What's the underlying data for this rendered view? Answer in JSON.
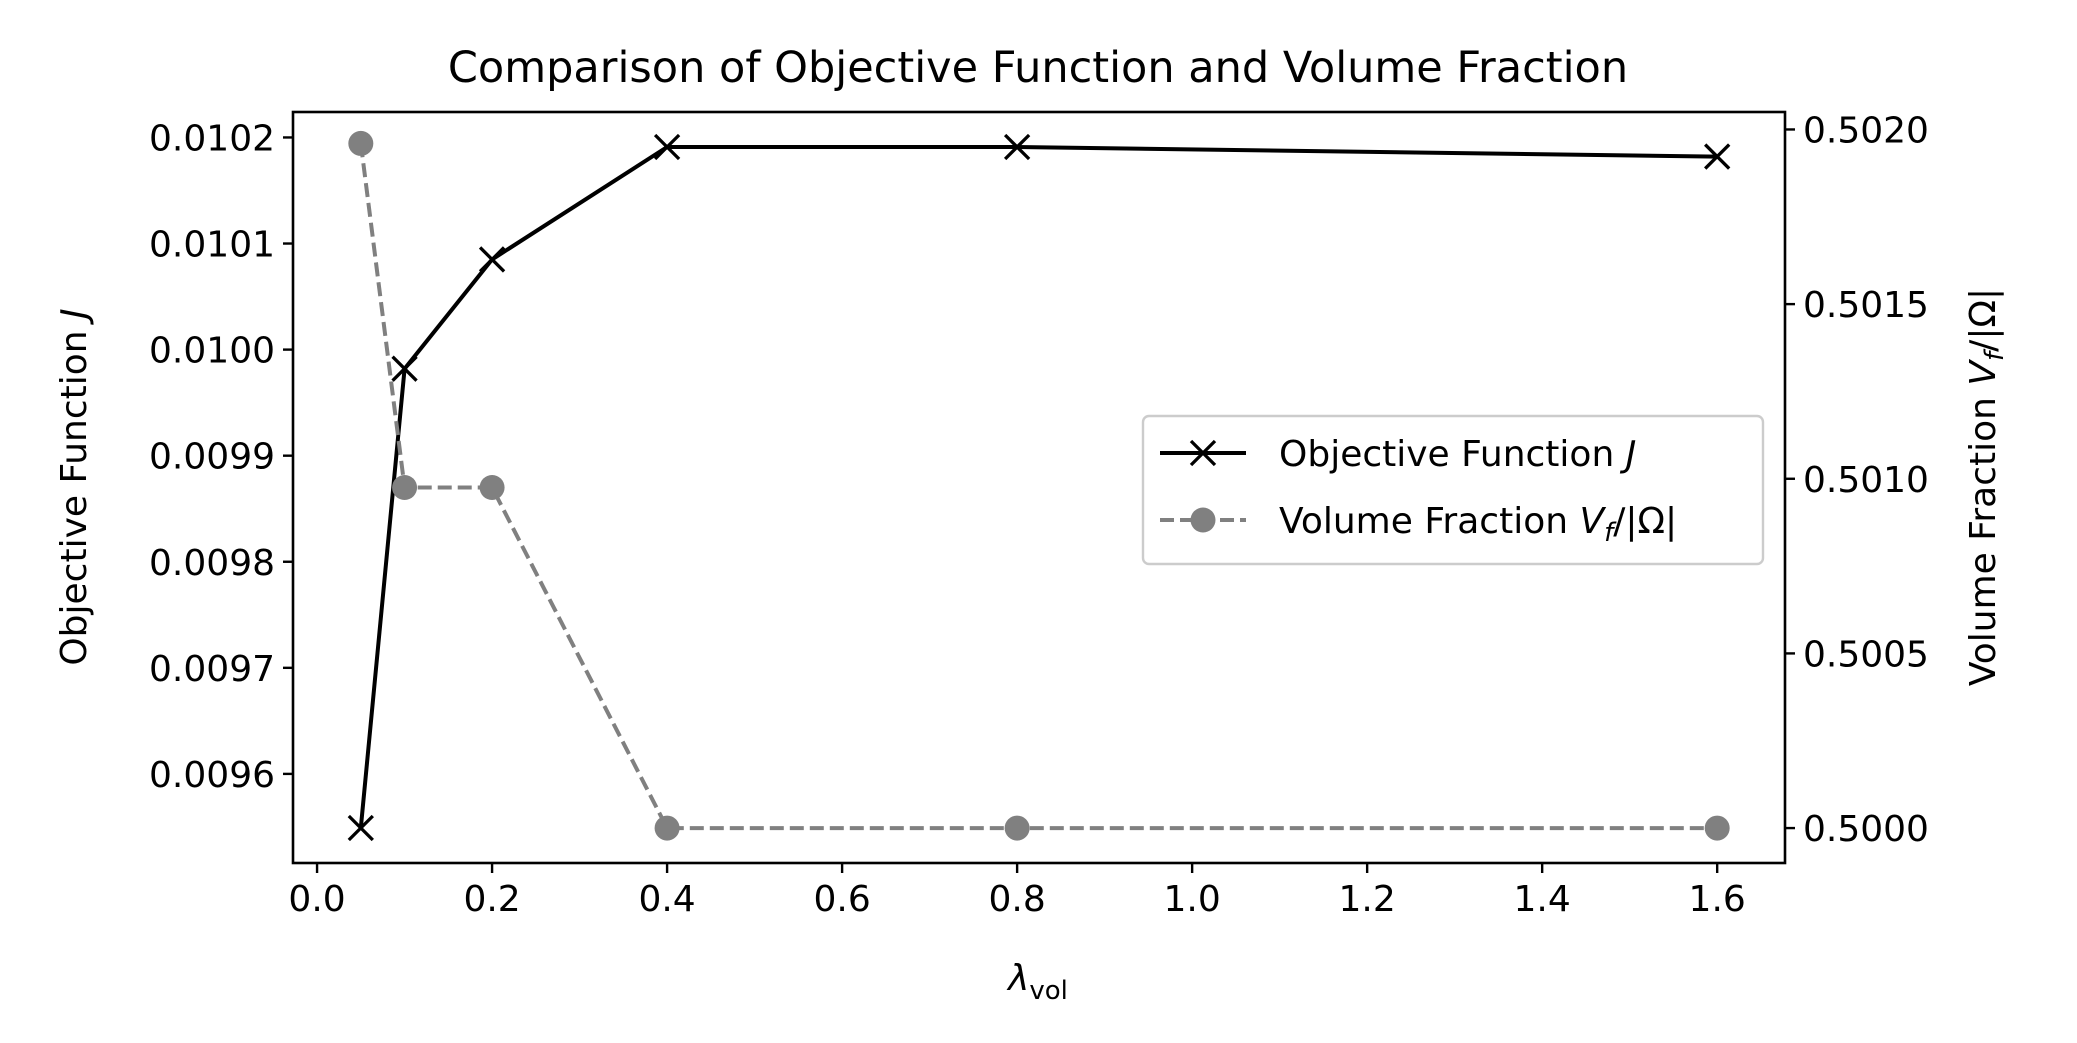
{
  "chart_data": {
    "type": "line",
    "title": "Comparison of Objective Function and Volume Fraction",
    "xlabel": {
      "main": "λ",
      "sub": "vol"
    },
    "ylabel_left": {
      "main": "Objective Function ",
      "italic": "J"
    },
    "ylabel_right": {
      "main": "Volume Fraction ",
      "var": "V",
      "sub": "f",
      "tail": "/|Ω|"
    },
    "x": [
      0.05,
      0.1,
      0.2,
      0.4,
      0.8,
      1.6
    ],
    "xlim": [
      -0.0275,
      1.6775
    ],
    "xticks": [
      0.0,
      0.2,
      0.4,
      0.6,
      0.8,
      1.0,
      1.2,
      1.4,
      1.6
    ],
    "xtick_labels": [
      "0.0",
      "0.2",
      "0.4",
      "0.6",
      "0.8",
      "1.0",
      "1.2",
      "1.4",
      "1.6"
    ],
    "y_left_lim": [
      0.009516,
      0.010224
    ],
    "y_left_ticks": [
      0.0096,
      0.0097,
      0.0098,
      0.0099,
      0.01,
      0.0101,
      0.0102
    ],
    "y_left_tick_labels": [
      "0.0096",
      "0.0097",
      "0.0098",
      "0.0099",
      "0.0100",
      "0.0101",
      "0.0102"
    ],
    "y_right_lim": [
      0.4999,
      0.50205
    ],
    "y_right_ticks": [
      0.5,
      0.5005,
      0.501,
      0.5015,
      0.502
    ],
    "y_right_tick_labels": [
      "0.5000",
      "0.5005",
      "0.5010",
      "0.5015",
      "0.5020"
    ],
    "series": [
      {
        "name": "Objective Function J",
        "legend_main": "Objective Function ",
        "legend_italic": "J",
        "axis": "left",
        "values": [
          0.009549,
          0.009982,
          0.010085,
          0.010191,
          0.010191,
          0.010182
        ],
        "color": "#000000",
        "marker": "x",
        "linestyle": "solid"
      },
      {
        "name": "Volume Fraction Vf/|Ω|",
        "legend_main": "Volume Fraction ",
        "legend_var": "V",
        "legend_sub": "f",
        "legend_tail": "/|Ω|",
        "axis": "right",
        "values": [
          0.50196,
          0.500975,
          0.500975,
          0.5,
          0.5,
          0.5
        ],
        "color": "#808080",
        "marker": "o",
        "linestyle": "dashed"
      }
    ],
    "legend_position": "center-right",
    "grid": false
  }
}
